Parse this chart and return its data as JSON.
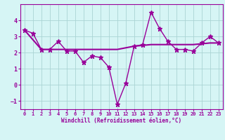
{
  "x": [
    0,
    1,
    2,
    3,
    4,
    5,
    6,
    7,
    8,
    9,
    10,
    11,
    12,
    13,
    14,
    15,
    16,
    17,
    18,
    19,
    20,
    21,
    22,
    23
  ],
  "y_main": [
    3.4,
    3.2,
    2.2,
    2.2,
    2.7,
    2.1,
    2.1,
    1.4,
    1.8,
    1.7,
    1.1,
    -1.2,
    0.1,
    2.4,
    2.5,
    4.5,
    3.5,
    2.7,
    2.2,
    2.2,
    2.1,
    2.6,
    3.0,
    2.6
  ],
  "y_smooth": [
    3.4,
    2.8,
    2.2,
    2.2,
    2.2,
    2.2,
    2.2,
    2.2,
    2.2,
    2.2,
    2.2,
    2.2,
    2.3,
    2.4,
    2.45,
    2.5,
    2.5,
    2.5,
    2.5,
    2.5,
    2.5,
    2.55,
    2.6,
    2.6
  ],
  "line_color": "#990099",
  "bg_color": "#d6f5f5",
  "grid_color": "#aad4d4",
  "xlabel": "Windchill (Refroidissement éolien,°C)",
  "ylim": [
    -1.5,
    5.0
  ],
  "xlim": [
    -0.5,
    23.5
  ],
  "yticks": [
    -1,
    0,
    1,
    2,
    3,
    4
  ],
  "xticks": [
    0,
    1,
    2,
    3,
    4,
    5,
    6,
    7,
    8,
    9,
    10,
    11,
    12,
    13,
    14,
    15,
    16,
    17,
    18,
    19,
    20,
    21,
    22,
    23
  ],
  "xtick_labels": [
    "0",
    "1",
    "2",
    "3",
    "4",
    "5",
    "6",
    "7",
    "8",
    "9",
    "10",
    "11",
    "12",
    "13",
    "14",
    "15",
    "16",
    "17",
    "18",
    "19",
    "20",
    "21",
    "22",
    "23"
  ]
}
